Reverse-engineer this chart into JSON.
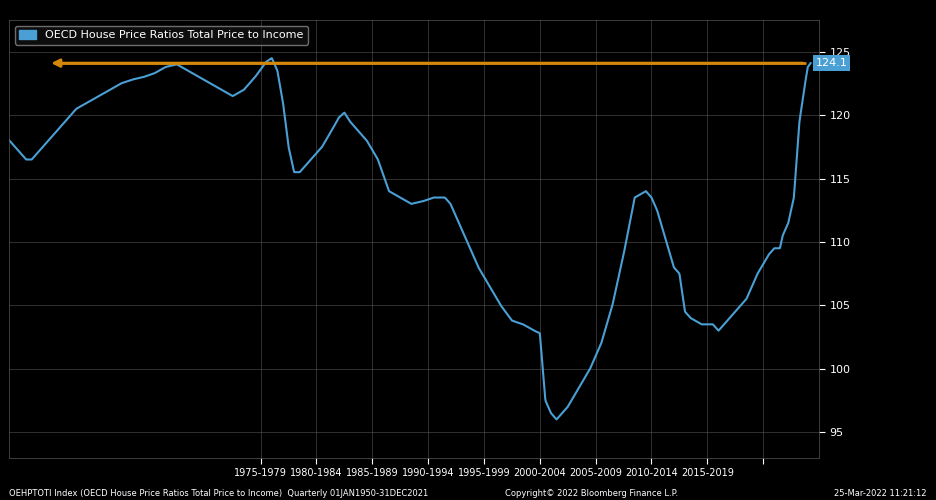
{
  "legend_label": "OECD House Price Ratios Total Price to Income",
  "background_color": "#000000",
  "line_color": "#4a9fd4",
  "line_width": 1.5,
  "arrow_color": "#d4870a",
  "label_value": "124.1",
  "label_bg": "#4a9fd4",
  "ylim": [
    93.0,
    127.5
  ],
  "yticks": [
    95,
    100,
    105,
    110,
    115,
    120,
    125
  ],
  "xlabel_bottom": "OEHPTOTI Index (OECD House Price Ratios Total Price to Income)  Quarterly 01JAN1950-31DEC2021",
  "copyright_text": "Copyright© 2022 Bloomberg Finance L.P.",
  "date_text": "25-Mar-2022 11:21:12",
  "ctrl_x": [
    1950.0,
    1950.5,
    1951.0,
    1951.5,
    1952.0,
    1952.5,
    1953.0,
    1953.5,
    1954.0,
    1955.0,
    1956.0,
    1957.0,
    1958.0,
    1959.0,
    1960.0,
    1961.0,
    1962.0,
    1963.0,
    1964.0,
    1965.0,
    1966.0,
    1967.0,
    1968.0,
    1969.0,
    1970.0,
    1971.0,
    1972.0,
    1973.0,
    1973.5,
    1974.0,
    1974.5,
    1975.0,
    1975.25,
    1975.5,
    1976.0,
    1976.5,
    1977.0,
    1978.0,
    1979.0,
    1979.5,
    1980.0,
    1980.5,
    1981.0,
    1982.0,
    1983.0,
    1984.0,
    1985.0,
    1986.0,
    1987.0,
    1988.0,
    1989.0,
    1989.5,
    1990.0,
    1991.0,
    1992.0,
    1993.0,
    1994.0,
    1995.0,
    1996.0,
    1997.0,
    1997.5,
    1998.0,
    1998.5,
    1999.0,
    2000.0,
    2001.0,
    2002.0,
    2003.0,
    2004.0,
    2005.0,
    2006.0,
    2007.0,
    2007.5,
    2008.0,
    2009.0,
    2009.5,
    2010.0,
    2010.5,
    2011.0,
    2012.0,
    2013.0,
    2013.5,
    2014.0,
    2015.0,
    2016.0,
    2017.0,
    2018.0,
    2018.5,
    2019.0,
    2019.25,
    2019.5,
    2019.75,
    2020.0,
    2020.25,
    2020.5,
    2020.75,
    2021.0,
    2021.25,
    2021.5,
    2021.75
  ],
  "ctrl_y": [
    118.0,
    117.5,
    117.0,
    116.5,
    116.5,
    117.0,
    117.5,
    118.0,
    118.5,
    119.5,
    120.5,
    121.0,
    121.5,
    122.0,
    122.5,
    122.8,
    123.0,
    123.3,
    123.8,
    124.0,
    123.5,
    123.0,
    122.5,
    122.0,
    121.5,
    122.0,
    123.0,
    124.2,
    124.5,
    123.5,
    121.0,
    117.5,
    116.5,
    115.5,
    115.5,
    116.0,
    116.5,
    117.5,
    119.0,
    119.8,
    120.2,
    119.5,
    119.0,
    118.0,
    116.5,
    114.0,
    113.5,
    113.0,
    113.2,
    113.5,
    113.5,
    113.0,
    112.0,
    110.0,
    108.0,
    106.5,
    105.0,
    103.8,
    103.5,
    103.0,
    102.8,
    97.5,
    96.5,
    96.0,
    97.0,
    98.5,
    100.0,
    102.0,
    105.0,
    109.0,
    113.5,
    114.0,
    113.5,
    112.5,
    109.5,
    108.0,
    107.5,
    104.5,
    104.0,
    103.5,
    103.5,
    103.0,
    103.5,
    104.5,
    105.5,
    107.5,
    109.0,
    109.5,
    109.5,
    110.5,
    111.0,
    111.5,
    112.5,
    113.5,
    116.5,
    119.5,
    121.0,
    122.5,
    123.8,
    124.1
  ],
  "tick_positions": [
    1972.5,
    1977.5,
    1982.5,
    1987.5,
    1992.5,
    1997.5,
    2002.5,
    2007.5,
    2012.5,
    2017.5
  ],
  "tick_labels": [
    "1975-1979",
    "1980-1984",
    "1985-1989",
    "1990-1994",
    "1995-1999",
    "2000-2004",
    "2005-2009",
    "2010-2014",
    "2015-2019",
    ""
  ],
  "xlim": [
    1950.0,
    2022.5
  ]
}
